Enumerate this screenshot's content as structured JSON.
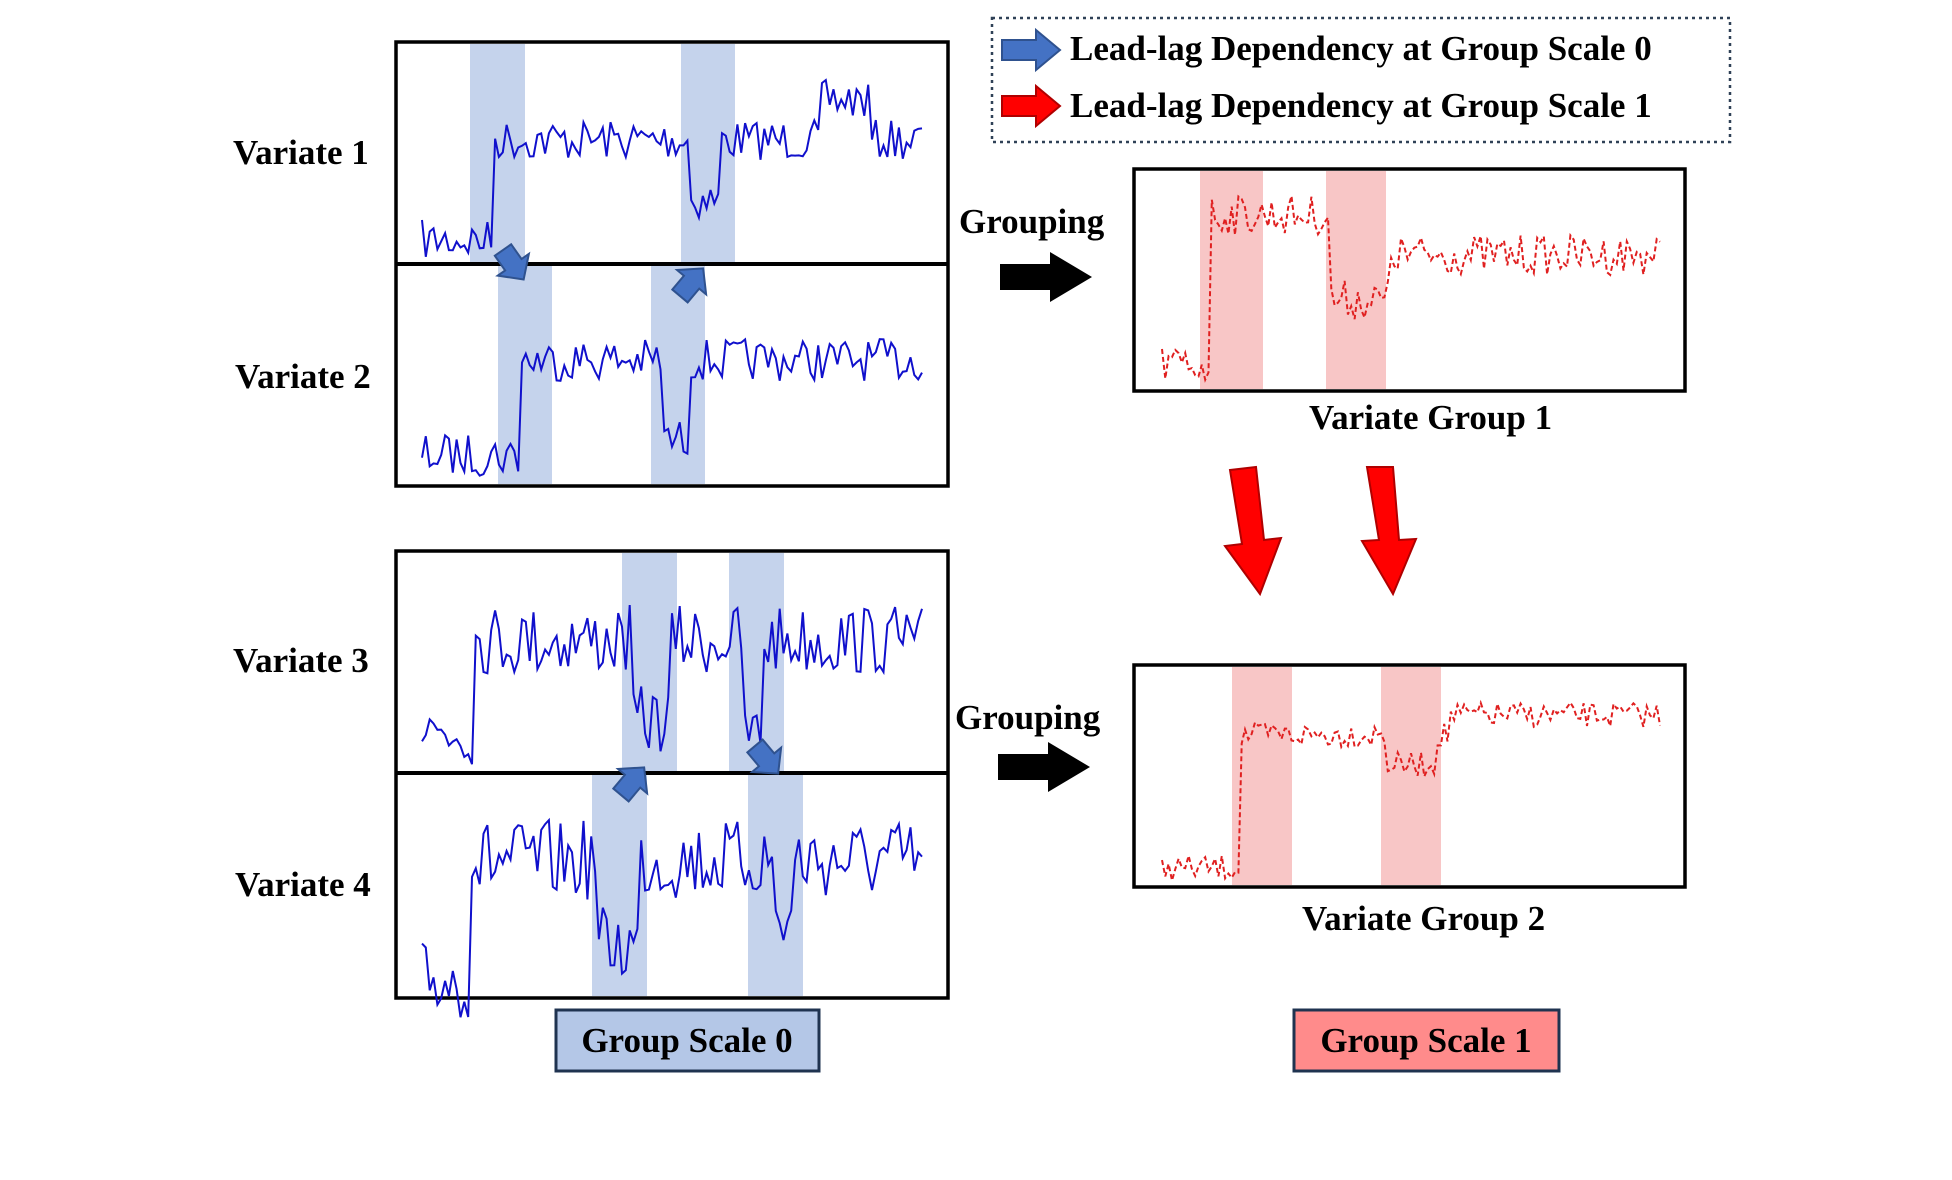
{
  "legend": {
    "items": [
      {
        "text": "Lead-lag Dependency at Group Scale 0",
        "color": "#4472C4"
      },
      {
        "text": "Lead-lag Dependency at Group Scale 1",
        "color": "#FF0000"
      }
    ]
  },
  "variates": [
    "Variate 1",
    "Variate 2",
    "Variate 3",
    "Variate 4"
  ],
  "grouping_label": "Grouping",
  "groups": [
    "Variate Group 1",
    "Variate Group 2"
  ],
  "scale_labels": {
    "scale0": "Group Scale 0",
    "scale1": "Group Scale 1"
  },
  "colors": {
    "variate_line": "#1010CC",
    "group_line": "#E02020",
    "highlight_blue": "#C5D3EC",
    "highlight_red": "#F8C6C6",
    "arrow_blue": "#4472C4",
    "arrow_red": "#FF0000",
    "scale0_bg": "#B4C7E7",
    "scale1_bg": "#FF8B8B"
  }
}
